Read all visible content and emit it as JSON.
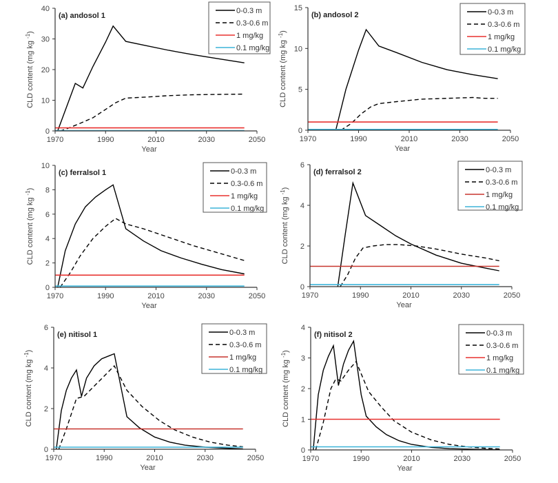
{
  "chart_data": [
    {
      "type": "line",
      "title": "(a) andosol 1",
      "xlabel": "Year",
      "ylabel": "CLD content (mg kg -1)",
      "xlim": [
        1970,
        2050
      ],
      "ylim": [
        0,
        40
      ],
      "xticks": [
        1970,
        1990,
        2010,
        2030,
        2050
      ],
      "yticks": [
        0,
        10,
        20,
        30,
        40
      ],
      "legend": "top-right",
      "series": [
        {
          "name": "0-0.3 m",
          "style": "solid",
          "color": "#000000",
          "x": [
            1971,
            1978,
            1981,
            1985,
            1990,
            1993,
            1998,
            2005,
            2015,
            2025,
            2035,
            2045
          ],
          "y": [
            0,
            15.5,
            14,
            21,
            29,
            34.2,
            29.2,
            28,
            26.3,
            24.8,
            23.5,
            22.2
          ]
        },
        {
          "name": "0.3-0.6 m",
          "style": "dashed",
          "color": "#000000",
          "x": [
            1972,
            1975,
            1980,
            1985,
            1990,
            1994,
            1998,
            2005,
            2015,
            2025,
            2035,
            2045
          ],
          "y": [
            0,
            0.8,
            2.5,
            4.3,
            7,
            9.2,
            10.7,
            11,
            11.5,
            11.8,
            11.9,
            12
          ]
        },
        {
          "name": "1 mg/kg",
          "style": "solid",
          "color": "#e8312f",
          "x": [
            1970,
            2045
          ],
          "y": [
            1,
            1
          ]
        },
        {
          "name": "0.1 mg/kg",
          "style": "solid",
          "color": "#3bb3d8",
          "x": [
            1970,
            2045
          ],
          "y": [
            0.1,
            0.1
          ]
        }
      ]
    },
    {
      "type": "line",
      "title": "(b) andosol 2",
      "xlabel": "Year",
      "ylabel": "CLD content (mg kg -1)",
      "xlim": [
        1970,
        2050
      ],
      "ylim": [
        0,
        15
      ],
      "xticks": [
        1970,
        1990,
        2010,
        2030,
        2050
      ],
      "yticks": [
        0,
        5,
        10,
        15
      ],
      "legend": "top-right",
      "series": [
        {
          "name": "0-0.3 m",
          "style": "solid",
          "color": "#000000",
          "x": [
            1981,
            1985,
            1990,
            1993,
            1998,
            2005,
            2015,
            2025,
            2035,
            2045
          ],
          "y": [
            0,
            5,
            9.8,
            12.3,
            10.3,
            9.5,
            8.3,
            7.4,
            6.8,
            6.3
          ]
        },
        {
          "name": "0.3-0.6 m",
          "style": "dashed",
          "color": "#000000",
          "x": [
            1983,
            1987,
            1991,
            1995,
            1998,
            2005,
            2015,
            2025,
            2035,
            2040,
            2045
          ],
          "y": [
            0,
            0.8,
            2,
            2.9,
            3.25,
            3.5,
            3.8,
            3.9,
            4,
            3.9,
            3.9
          ]
        },
        {
          "name": "1 mg/kg",
          "style": "solid",
          "color": "#e8312f",
          "x": [
            1970,
            2045
          ],
          "y": [
            1,
            1
          ]
        },
        {
          "name": "0.1 mg/kg",
          "style": "solid",
          "color": "#3bb3d8",
          "x": [
            1970,
            2045
          ],
          "y": [
            0.1,
            0.1
          ]
        }
      ]
    },
    {
      "type": "line",
      "title": "(c) ferralsol 1",
      "xlabel": "Year",
      "ylabel": "CLD content (mg kg -1)",
      "xlim": [
        1970,
        2050
      ],
      "ylim": [
        0,
        10
      ],
      "xticks": [
        1970,
        1990,
        2010,
        2030,
        2050
      ],
      "yticks": [
        0,
        2,
        4,
        6,
        8,
        10
      ],
      "legend": "top-right",
      "series": [
        {
          "name": "0-0.3 m",
          "style": "solid",
          "color": "#000000",
          "x": [
            1971,
            1974,
            1978,
            1982,
            1986,
            1990,
            1993,
            1998,
            2005,
            2012,
            2020,
            2028,
            2036,
            2045
          ],
          "y": [
            0,
            3,
            5.2,
            6.6,
            7.4,
            8,
            8.4,
            4.8,
            3.8,
            3,
            2.4,
            1.9,
            1.45,
            1.1
          ]
        },
        {
          "name": "0.3-0.6 m",
          "style": "dashed",
          "color": "#000000",
          "x": [
            1972,
            1976,
            1980,
            1985,
            1990,
            1994,
            1998,
            2005,
            2015,
            2025,
            2035,
            2045
          ],
          "y": [
            0,
            1.2,
            2.6,
            4,
            5,
            5.65,
            5.2,
            4.8,
            4.1,
            3.4,
            2.8,
            2.2
          ]
        },
        {
          "name": "1 mg/kg",
          "style": "solid",
          "color": "#e8312f",
          "x": [
            1970,
            2045
          ],
          "y": [
            1,
            1
          ]
        },
        {
          "name": "0.1 mg/kg",
          "style": "solid",
          "color": "#3bb3d8",
          "x": [
            1970,
            2045
          ],
          "y": [
            0.1,
            0.1
          ]
        }
      ]
    },
    {
      "type": "line",
      "title": "(d) ferralsol 2",
      "xlabel": "Year",
      "ylabel": "CLD content (mg kg -1)",
      "xlim": [
        1970,
        2050
      ],
      "ylim": [
        0,
        6
      ],
      "xticks": [
        1970,
        1990,
        2010,
        2030,
        2050
      ],
      "yticks": [
        0,
        2,
        4,
        6
      ],
      "legend": "top-right",
      "series": [
        {
          "name": "0-0.3 m",
          "style": "solid",
          "color": "#000000",
          "x": [
            1981,
            1984,
            1987,
            1992,
            1998,
            2004,
            2010,
            2020,
            2030,
            2040,
            2045
          ],
          "y": [
            0,
            2.6,
            5.1,
            3.5,
            3,
            2.5,
            2.1,
            1.55,
            1.15,
            0.9,
            0.78
          ]
        },
        {
          "name": "0.3-0.6 m",
          "style": "dashed",
          "color": "#000000",
          "x": [
            1982,
            1985,
            1988,
            1991,
            1995,
            2000,
            2005,
            2012,
            2020,
            2030,
            2040,
            2045
          ],
          "y": [
            0,
            0.6,
            1.4,
            1.9,
            2,
            2.07,
            2.07,
            2,
            1.85,
            1.6,
            1.4,
            1.27
          ]
        },
        {
          "name": "1 mg/kg",
          "style": "solid",
          "color": "#c7342d",
          "x": [
            1970,
            2045
          ],
          "y": [
            1,
            1
          ]
        },
        {
          "name": "0.1 mg/kg",
          "style": "solid",
          "color": "#3bb3d8",
          "x": [
            1970,
            2045
          ],
          "y": [
            0.1,
            0.1
          ]
        }
      ]
    },
    {
      "type": "line",
      "title": "(e) nitisol 1",
      "xlabel": "Year",
      "ylabel": "CLD content (mg kg -1)",
      "xlim": [
        1970,
        2050
      ],
      "ylim": [
        0,
        6
      ],
      "xticks": [
        1970,
        1990,
        2010,
        2030,
        2050
      ],
      "yticks": [
        0,
        2,
        4,
        6
      ],
      "legend": "top-right",
      "series": [
        {
          "name": "0-0.3 m",
          "style": "solid",
          "color": "#000000",
          "x": [
            1971,
            1973,
            1975,
            1977,
            1979,
            1981,
            1983,
            1986,
            1989,
            1992,
            1994,
            1999,
            2004,
            2010,
            2016,
            2022,
            2030,
            2038,
            2045
          ],
          "y": [
            0,
            1.9,
            2.9,
            3.5,
            3.9,
            2.6,
            3.5,
            4.1,
            4.45,
            4.6,
            4.7,
            1.6,
            1.05,
            0.6,
            0.35,
            0.2,
            0.1,
            0.05,
            0.02
          ]
        },
        {
          "name": "0.3-0.6 m",
          "style": "dashed",
          "color": "#000000",
          "x": [
            1972,
            1975,
            1979,
            1982,
            1986,
            1990,
            1994,
            1999,
            2005,
            2012,
            2018,
            2025,
            2032,
            2039,
            2045
          ],
          "y": [
            0,
            1,
            2.5,
            2.6,
            3.1,
            3.6,
            4.1,
            2.9,
            2.1,
            1.4,
            0.95,
            0.6,
            0.35,
            0.2,
            0.12
          ]
        },
        {
          "name": "1 mg/kg",
          "style": "solid",
          "color": "#c7342d",
          "x": [
            1970,
            2045
          ],
          "y": [
            1,
            1
          ]
        },
        {
          "name": "0.1 mg/kg",
          "style": "solid",
          "color": "#3bb3d8",
          "x": [
            1970,
            2045
          ],
          "y": [
            0.1,
            0.1
          ]
        }
      ]
    },
    {
      "type": "line",
      "title": "(f) nitisol 2",
      "xlabel": "Year",
      "ylabel": "CLD content (mg kg -1)",
      "xlim": [
        1970,
        2050
      ],
      "ylim": [
        0,
        4
      ],
      "xticks": [
        1970,
        1990,
        2010,
        2030,
        2050
      ],
      "yticks": [
        0,
        1,
        2,
        3,
        4
      ],
      "legend": "top-right",
      "series": [
        {
          "name": "0-0.3 m",
          "style": "solid",
          "color": "#000000",
          "x": [
            1971,
            1973,
            1975,
            1977,
            1979,
            1981,
            1983,
            1985,
            1987,
            1990,
            1992,
            1996,
            2000,
            2005,
            2010,
            2018,
            2025,
            2035,
            2045
          ],
          "y": [
            0,
            1.8,
            2.6,
            3.05,
            3.4,
            2.1,
            2.8,
            3.25,
            3.55,
            1.8,
            1.1,
            0.75,
            0.5,
            0.3,
            0.18,
            0.08,
            0.04,
            0.02,
            0.01
          ]
        },
        {
          "name": "0.3-0.6 m",
          "style": "dashed",
          "color": "#000000",
          "x": [
            1972,
            1975,
            1978,
            1980,
            1982,
            1985,
            1988,
            1993,
            1998,
            2003,
            2010,
            2018,
            2025,
            2032,
            2040,
            2045
          ],
          "y": [
            0,
            0.9,
            2,
            2.32,
            2.25,
            2.6,
            2.88,
            1.9,
            1.4,
            0.95,
            0.58,
            0.32,
            0.18,
            0.1,
            0.05,
            0.03
          ]
        },
        {
          "name": "1 mg/kg",
          "style": "solid",
          "color": "#e8312f",
          "x": [
            1970,
            2045
          ],
          "y": [
            1,
            1
          ]
        },
        {
          "name": "0.1 mg/kg",
          "style": "solid",
          "color": "#3bb3d8",
          "x": [
            1970,
            2045
          ],
          "y": [
            0.1,
            0.1
          ]
        }
      ]
    }
  ]
}
